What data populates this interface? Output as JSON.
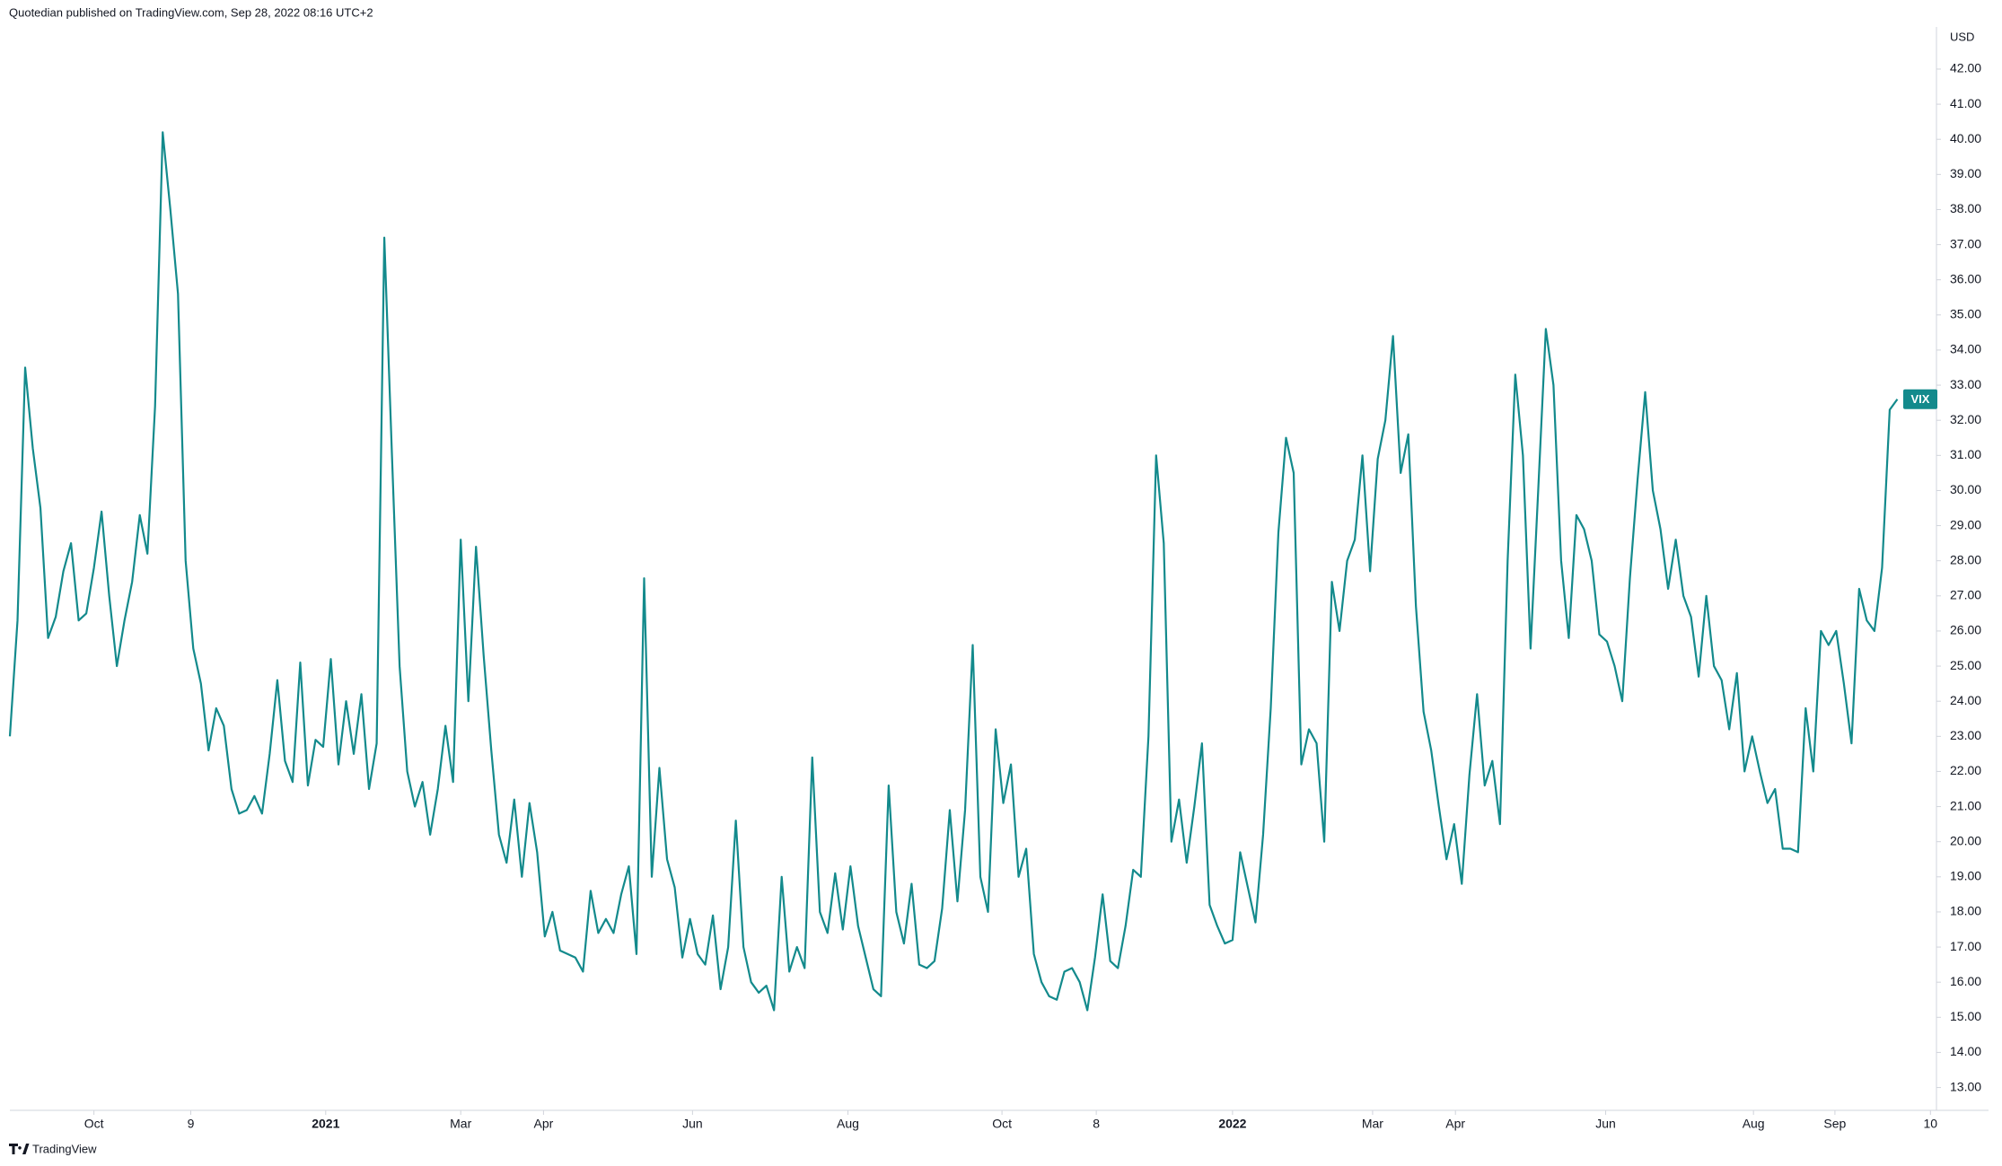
{
  "header": {
    "text": "Quotedian published on TradingView.com, Sep 28, 2022 08:16 UTC+2"
  },
  "footer": {
    "brand": "TradingView"
  },
  "chart_data": {
    "type": "line",
    "y_unit": "USD",
    "xlim": [
      0,
      252
    ],
    "xticks": [
      {
        "value": 11,
        "label": "Oct"
      },
      {
        "value": 23.67,
        "label": "9"
      },
      {
        "value": 41.33,
        "label": "2021"
      },
      {
        "value": 59,
        "label": "Mar"
      },
      {
        "value": 69.83,
        "label": "Apr"
      },
      {
        "value": 89.33,
        "label": "Jun"
      },
      {
        "value": 109.67,
        "label": "Aug"
      },
      {
        "value": 129.83,
        "label": "Oct"
      },
      {
        "value": 142.17,
        "label": "8"
      },
      {
        "value": 160,
        "label": "2022"
      },
      {
        "value": 178.33,
        "label": "Mar"
      },
      {
        "value": 189.17,
        "label": "Apr"
      },
      {
        "value": 208.83,
        "label": "Jun"
      },
      {
        "value": 228.17,
        "label": "Aug"
      },
      {
        "value": 238.83,
        "label": "Sep"
      },
      {
        "value": 251.33,
        "label": "10"
      }
    ],
    "ylim": [
      12.35,
      43.2
    ],
    "yticks": [
      {
        "value": 13,
        "label": "13.00"
      },
      {
        "value": 14,
        "label": "14.00"
      },
      {
        "value": 15,
        "label": "15.00"
      },
      {
        "value": 16,
        "label": "16.00"
      },
      {
        "value": 17,
        "label": "17.00"
      },
      {
        "value": 18,
        "label": "18.00"
      },
      {
        "value": 19,
        "label": "19.00"
      },
      {
        "value": 20,
        "label": "20.00"
      },
      {
        "value": 21,
        "label": "21.00"
      },
      {
        "value": 22,
        "label": "22.00"
      },
      {
        "value": 23,
        "label": "23.00"
      },
      {
        "value": 24,
        "label": "24.00"
      },
      {
        "value": 25,
        "label": "25.00"
      },
      {
        "value": 26,
        "label": "26.00"
      },
      {
        "value": 27,
        "label": "27.00"
      },
      {
        "value": 28,
        "label": "28.00"
      },
      {
        "value": 29,
        "label": "29.00"
      },
      {
        "value": 30,
        "label": "30.00"
      },
      {
        "value": 31,
        "label": "31.00"
      },
      {
        "value": 32,
        "label": "32.00"
      },
      {
        "value": 33,
        "label": "33.00"
      },
      {
        "value": 34,
        "label": "34.00"
      },
      {
        "value": 35,
        "label": "35.00"
      },
      {
        "value": 36,
        "label": "36.00"
      },
      {
        "value": 37,
        "label": "37.00"
      },
      {
        "value": 38,
        "label": "38.00"
      },
      {
        "value": 39,
        "label": "39.00"
      },
      {
        "value": 40,
        "label": "40.00"
      },
      {
        "value": 41,
        "label": "41.00"
      },
      {
        "value": 42,
        "label": "42.00"
      }
    ],
    "series": [
      {
        "name": "VIX",
        "color": "#138a8c",
        "values": [
          23.0,
          26.3,
          33.5,
          31.2,
          29.5,
          25.8,
          26.4,
          27.7,
          28.5,
          26.3,
          26.5,
          27.8,
          29.4,
          27.0,
          25.0,
          26.3,
          27.4,
          29.3,
          28.2,
          32.4,
          40.2,
          38.0,
          35.6,
          28.0,
          25.5,
          24.5,
          22.6,
          23.8,
          23.3,
          21.5,
          20.8,
          20.9,
          21.3,
          20.8,
          22.5,
          24.6,
          22.3,
          21.7,
          25.1,
          21.6,
          22.9,
          22.7,
          25.2,
          22.2,
          24.0,
          22.5,
          24.2,
          21.5,
          22.8,
          37.2,
          31.0,
          25.0,
          22.0,
          21.0,
          21.7,
          20.2,
          21.5,
          23.3,
          21.7,
          28.6,
          24.0,
          28.4,
          25.3,
          22.6,
          20.2,
          19.4,
          21.2,
          19.0,
          21.1,
          19.7,
          17.3,
          18.0,
          16.9,
          16.8,
          16.7,
          16.3,
          18.6,
          17.4,
          17.8,
          17.4,
          18.5,
          19.3,
          16.8,
          27.5,
          19.0,
          22.1,
          19.5,
          18.7,
          16.7,
          17.8,
          16.8,
          16.5,
          17.9,
          15.8,
          17.0,
          20.6,
          17.0,
          16.0,
          15.7,
          15.9,
          15.2,
          19.0,
          16.3,
          17.0,
          16.4,
          22.4,
          18.0,
          17.4,
          19.1,
          17.5,
          19.3,
          17.6,
          16.7,
          15.8,
          15.6,
          21.6,
          18.0,
          17.1,
          18.8,
          16.5,
          16.4,
          16.6,
          18.1,
          20.9,
          18.3,
          20.9,
          25.6,
          19.0,
          18.0,
          23.2,
          21.1,
          22.2,
          19.0,
          19.8,
          16.8,
          16.0,
          15.6,
          15.5,
          16.3,
          16.4,
          16.0,
          15.2,
          16.7,
          18.5,
          16.6,
          16.4,
          17.6,
          19.2,
          19.0,
          23.0,
          31.0,
          28.5,
          20.0,
          21.2,
          19.4,
          21.0,
          22.8,
          18.2,
          17.6,
          17.1,
          17.2,
          19.7,
          18.7,
          17.7,
          20.2,
          23.8,
          28.8,
          31.5,
          30.5,
          22.2,
          23.2,
          22.8,
          20.0,
          27.4,
          26.0,
          28.0,
          28.6,
          31.0,
          27.7,
          30.9,
          32.0,
          34.4,
          30.5,
          31.6,
          26.7,
          23.7,
          22.6,
          21.0,
          19.5,
          20.5,
          18.8,
          21.9,
          24.2,
          21.6,
          22.3,
          20.5,
          28.0,
          33.3,
          31.0,
          25.5,
          30.0,
          34.6,
          33.0,
          28.0,
          25.8,
          29.3,
          28.9,
          28.0,
          25.9,
          25.7,
          25.0,
          24.0,
          27.5,
          30.3,
          32.8,
          30.0,
          28.9,
          27.2,
          28.6,
          27.0,
          26.4,
          24.7,
          27.0,
          25.0,
          24.6,
          23.2,
          24.8,
          22.0,
          23.0,
          22.0,
          21.1,
          21.5,
          19.8,
          19.8,
          19.7,
          23.8,
          22.0,
          26.0,
          25.6,
          26.0,
          24.5,
          22.8,
          27.2,
          26.3,
          26.0,
          27.8,
          32.3,
          32.6
        ]
      }
    ]
  }
}
